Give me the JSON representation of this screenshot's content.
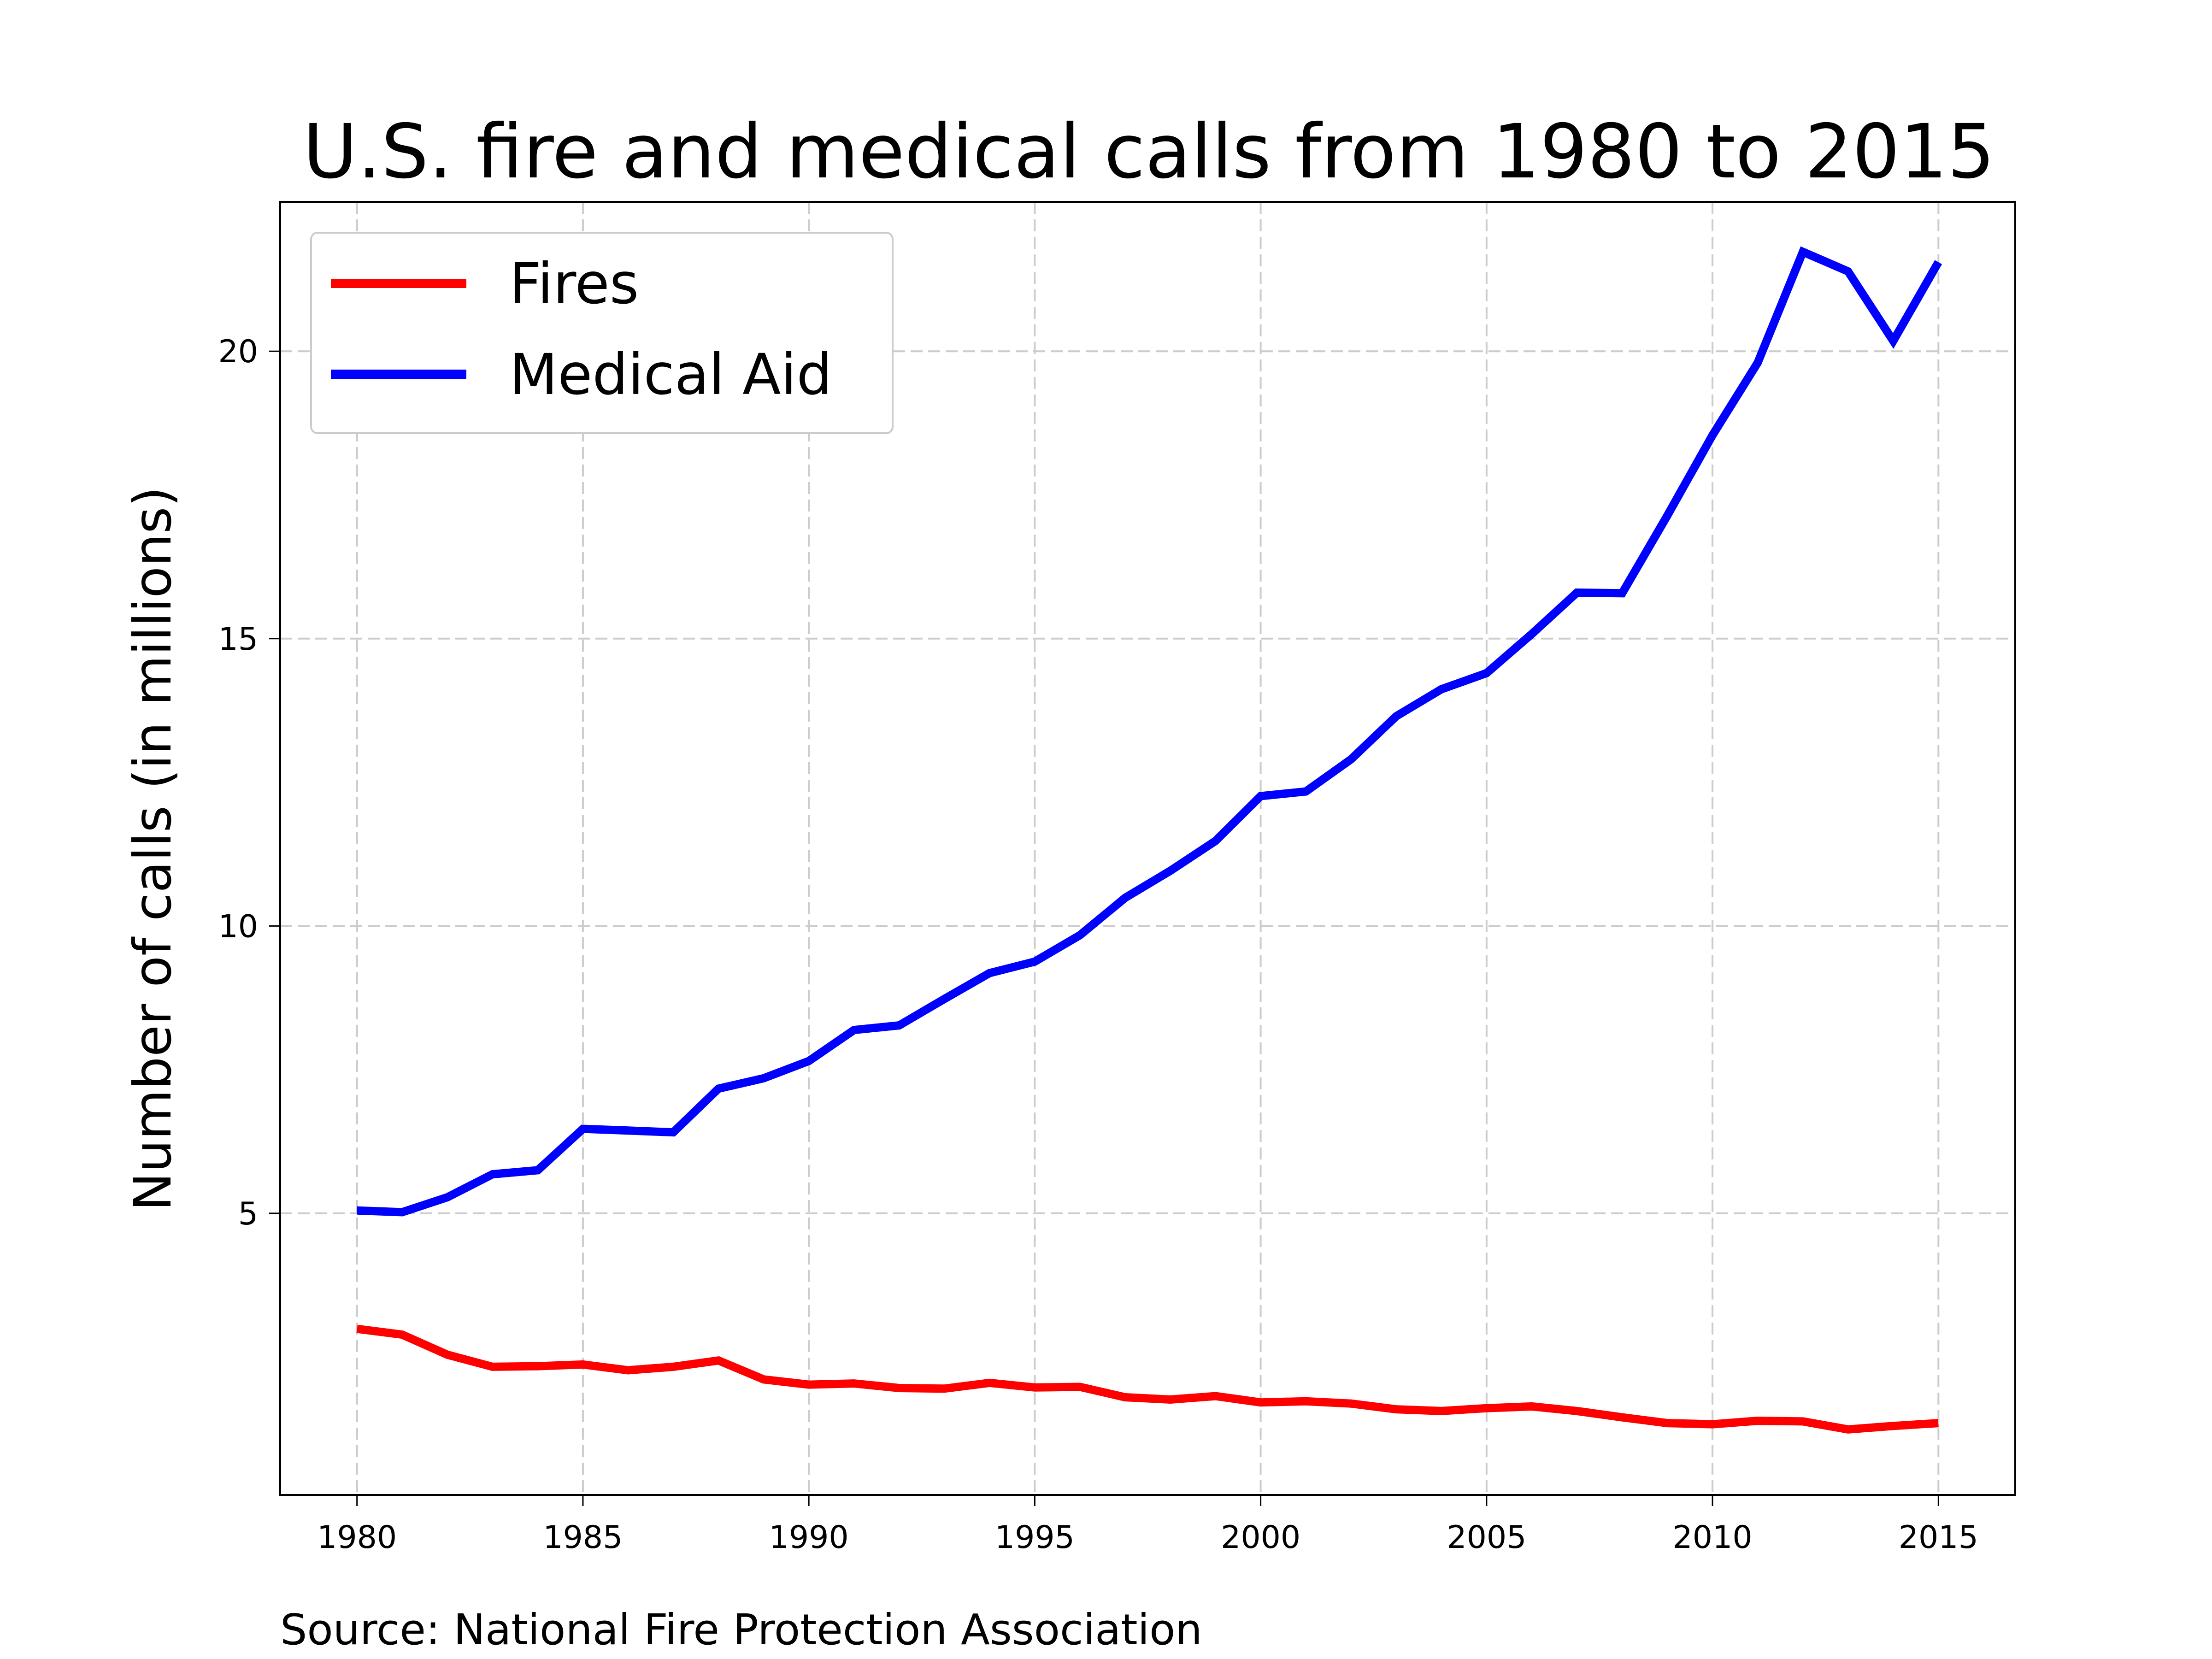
{
  "chart_data": {
    "type": "line",
    "title": "U.S. fire and medical calls from 1980 to 2015",
    "ylabel": "Number of calls (in millions)",
    "xlabel": "",
    "source": "Source: National Fire Protection Association",
    "xlim": [
      1978.3,
      2016.7
    ],
    "ylim": [
      0.1,
      22.6
    ],
    "x_ticks": [
      1980,
      1985,
      1990,
      1995,
      2000,
      2005,
      2010,
      2015
    ],
    "y_ticks": [
      5,
      10,
      15,
      20
    ],
    "grid": true,
    "legend": {
      "position": "top-left"
    },
    "x": [
      1980,
      1981,
      1982,
      1983,
      1984,
      1985,
      1986,
      1987,
      1988,
      1989,
      1990,
      1991,
      1992,
      1993,
      1994,
      1995,
      1996,
      1997,
      1998,
      1999,
      2000,
      2001,
      2002,
      2003,
      2004,
      2005,
      2006,
      2007,
      2008,
      2009,
      2010,
      2011,
      2012,
      2013,
      2014,
      2015
    ],
    "series": [
      {
        "name": "Fires",
        "color": "#ff0000",
        "values": [
          2.99,
          2.89,
          2.54,
          2.33,
          2.34,
          2.37,
          2.27,
          2.33,
          2.44,
          2.11,
          2.02,
          2.04,
          1.96,
          1.95,
          2.05,
          1.97,
          1.98,
          1.8,
          1.76,
          1.82,
          1.71,
          1.73,
          1.69,
          1.59,
          1.56,
          1.61,
          1.64,
          1.56,
          1.45,
          1.35,
          1.33,
          1.39,
          1.38,
          1.24,
          1.3,
          1.35
        ]
      },
      {
        "name": "Medical Aid",
        "color": "#0000ff",
        "values": [
          5.05,
          5.02,
          5.28,
          5.68,
          5.75,
          6.47,
          6.44,
          6.41,
          7.17,
          7.35,
          7.65,
          8.19,
          8.27,
          8.73,
          9.18,
          9.38,
          9.84,
          10.49,
          10.96,
          11.48,
          12.26,
          12.34,
          12.9,
          13.65,
          14.12,
          14.4,
          15.08,
          15.8,
          15.79,
          17.14,
          18.54,
          19.8,
          21.73,
          21.39,
          20.18,
          21.55
        ]
      }
    ]
  }
}
